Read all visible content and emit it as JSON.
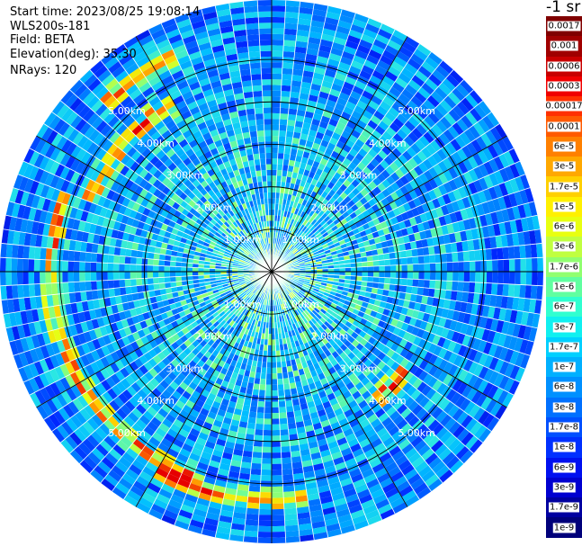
{
  "header": {
    "start_time": "Start time: 2023/08/25 19:08:14",
    "instrument": "WLS200s-181",
    "field": "Field: BETA",
    "elevation": "Elevation(deg): 35.30",
    "nrays": "NRays: 120"
  },
  "colorbar": {
    "unit_label": "-1 sr",
    "entries": [
      {
        "label": "0.0017",
        "color": "#800000"
      },
      {
        "label": "0.001",
        "color": "#a00000"
      },
      {
        "label": "0.0006",
        "color": "#c80000"
      },
      {
        "label": "0.0003",
        "color": "#f00000"
      },
      {
        "label": "0.00017",
        "color": "#ff3000"
      },
      {
        "label": "0.0001",
        "color": "#ff5a00"
      },
      {
        "label": "6e-5",
        "color": "#ff8000"
      },
      {
        "label": "3e-5",
        "color": "#ffa800"
      },
      {
        "label": "1.7e-5",
        "color": "#ffd000"
      },
      {
        "label": "1e-5",
        "color": "#fff000"
      },
      {
        "label": "6e-6",
        "color": "#e8ff10"
      },
      {
        "label": "3e-6",
        "color": "#c0ff40"
      },
      {
        "label": "1.7e-6",
        "color": "#90ff70"
      },
      {
        "label": "1e-6",
        "color": "#60ffa0"
      },
      {
        "label": "6e-7",
        "color": "#30ffd0"
      },
      {
        "label": "3e-7",
        "color": "#10f0f0"
      },
      {
        "label": "1.7e-7",
        "color": "#00d0ff"
      },
      {
        "label": "1e-7",
        "color": "#00b0ff"
      },
      {
        "label": "6e-8",
        "color": "#0090ff"
      },
      {
        "label": "3e-8",
        "color": "#0070ff"
      },
      {
        "label": "1.7e-8",
        "color": "#0050ff"
      },
      {
        "label": "1e-8",
        "color": "#0030ff"
      },
      {
        "label": "6e-9",
        "color": "#0010f0"
      },
      {
        "label": "3e-9",
        "color": "#0000d0"
      },
      {
        "label": "1.7e-9",
        "color": "#0000a0"
      },
      {
        "label": "1e-9",
        "color": "#00007a"
      }
    ]
  },
  "chart_data": {
    "type": "heatmap",
    "projection": "polar-ppi",
    "nrays": 120,
    "range_max_km": 6.4,
    "range_rings_km": [
      1,
      2,
      3,
      4,
      5
    ],
    "spoke_count": 12,
    "ring_labels": [
      "1.00km",
      "2.00km",
      "3.00km",
      "4.00km",
      "5.00km"
    ],
    "high_backscatter_arcs": [
      {
        "azimuth_start_deg": 290,
        "azimuth_end_deg": 330,
        "range_km": 4.6
      },
      {
        "azimuth_start_deg": 200,
        "azimuth_end_deg": 290,
        "range_km": 5.2
      },
      {
        "azimuth_start_deg": 170,
        "azimuth_end_deg": 210,
        "range_km": 5.4
      },
      {
        "azimuth_start_deg": 125,
        "azimuth_end_deg": 140,
        "range_km": 3.9
      },
      {
        "azimuth_start_deg": 315,
        "azimuth_end_deg": 340,
        "range_km": 5.6
      }
    ]
  }
}
